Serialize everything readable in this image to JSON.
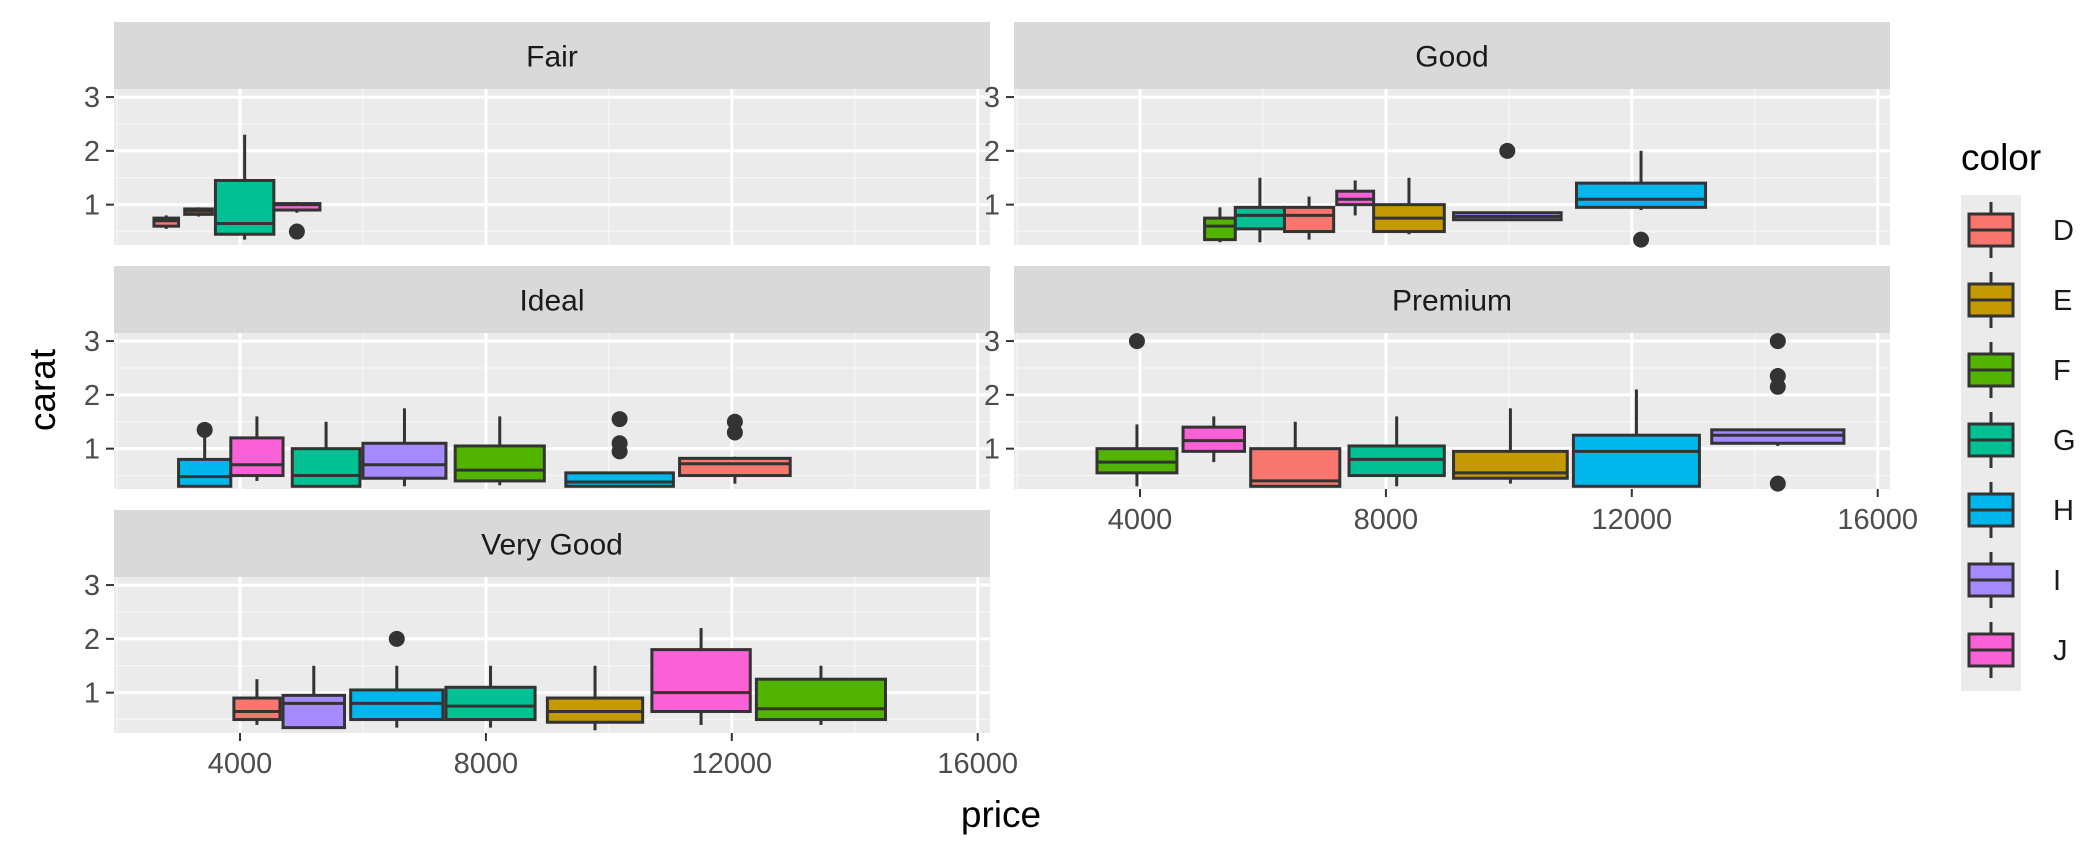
{
  "chart_data": {
    "type": "boxplot",
    "facet_by": "cut",
    "xlabel": "price",
    "ylabel": "carat",
    "x_ticks": [
      4000,
      8000,
      12000,
      16000
    ],
    "y_ticks": [
      1,
      2,
      3
    ],
    "xlim": [
      1950,
      16200
    ],
    "ylim": [
      0.25,
      3.15
    ],
    "grid": true,
    "legend": {
      "title": "color",
      "position": "right",
      "entries": [
        {
          "label": "D",
          "color": "#F8766D"
        },
        {
          "label": "E",
          "color": "#C49A00"
        },
        {
          "label": "F",
          "color": "#53B400"
        },
        {
          "label": "G",
          "color": "#00C094"
        },
        {
          "label": "H",
          "color": "#00B6EB"
        },
        {
          "label": "I",
          "color": "#A58AFF"
        },
        {
          "label": "J",
          "color": "#FB61D7"
        }
      ]
    },
    "panels": [
      {
        "title": "Fair",
        "x_axis": false,
        "boxes": [
          {
            "color": "D",
            "x_min": 2600,
            "x_max": 3000,
            "lower": 0.55,
            "q1": 0.6,
            "median": 0.7,
            "q3": 0.75,
            "upper": 0.8,
            "outliers": []
          },
          {
            "color": "E",
            "x_min": 3100,
            "x_max": 3550,
            "lower": 0.78,
            "q1": 0.82,
            "median": 0.88,
            "q3": 0.92,
            "upper": 0.95,
            "outliers": []
          },
          {
            "color": "G",
            "x_min": 3600,
            "x_max": 4550,
            "lower": 0.35,
            "q1": 0.45,
            "median": 0.65,
            "q3": 1.45,
            "upper": 2.3,
            "outliers": []
          },
          {
            "color": "J",
            "x_min": 4550,
            "x_max": 5300,
            "lower": 0.85,
            "q1": 0.9,
            "median": 1.0,
            "q3": 1.02,
            "upper": 1.05,
            "outliers": [
              0.5
            ]
          }
        ]
      },
      {
        "title": "Good",
        "x_axis": false,
        "boxes": [
          {
            "color": "F",
            "x_min": 5050,
            "x_max": 5550,
            "lower": 0.3,
            "q1": 0.35,
            "median": 0.6,
            "q3": 0.75,
            "upper": 0.95,
            "outliers": []
          },
          {
            "color": "G",
            "x_min": 5550,
            "x_max": 6350,
            "lower": 0.3,
            "q1": 0.55,
            "median": 0.8,
            "q3": 0.95,
            "upper": 1.5,
            "outliers": []
          },
          {
            "color": "D",
            "x_min": 6350,
            "x_max": 7150,
            "lower": 0.35,
            "q1": 0.5,
            "median": 0.8,
            "q3": 0.95,
            "upper": 1.15,
            "outliers": []
          },
          {
            "color": "J",
            "x_min": 7200,
            "x_max": 7800,
            "lower": 0.8,
            "q1": 1.0,
            "median": 1.1,
            "q3": 1.25,
            "upper": 1.45,
            "outliers": []
          },
          {
            "color": "E",
            "x_min": 7800,
            "x_max": 8950,
            "lower": 0.45,
            "q1": 0.5,
            "median": 0.75,
            "q3": 1.0,
            "upper": 1.5,
            "outliers": []
          },
          {
            "color": "I",
            "x_min": 9100,
            "x_max": 10850,
            "lower": 0.7,
            "q1": 0.72,
            "median": 0.78,
            "q3": 0.85,
            "upper": 0.85,
            "outliers": [
              2.0
            ]
          },
          {
            "color": "H",
            "x_min": 11100,
            "x_max": 13200,
            "lower": 0.9,
            "q1": 0.95,
            "median": 1.1,
            "q3": 1.4,
            "upper": 2.0,
            "outliers": [
              0.35
            ]
          }
        ]
      },
      {
        "title": "Ideal",
        "x_axis": false,
        "boxes": [
          {
            "color": "H",
            "x_min": 3000,
            "x_max": 3850,
            "lower": 0.28,
            "q1": 0.3,
            "median": 0.48,
            "q3": 0.8,
            "upper": 1.3,
            "outliers": [
              1.35
            ]
          },
          {
            "color": "J",
            "x_min": 3850,
            "x_max": 4700,
            "lower": 0.4,
            "q1": 0.5,
            "median": 0.7,
            "q3": 1.2,
            "upper": 1.6,
            "outliers": []
          },
          {
            "color": "G",
            "x_min": 4850,
            "x_max": 5950,
            "lower": 0.28,
            "q1": 0.3,
            "median": 0.5,
            "q3": 1.0,
            "upper": 1.5,
            "outliers": []
          },
          {
            "color": "I",
            "x_min": 6000,
            "x_max": 7350,
            "lower": 0.3,
            "q1": 0.45,
            "median": 0.7,
            "q3": 1.1,
            "upper": 1.75,
            "outliers": []
          },
          {
            "color": "F",
            "x_min": 7500,
            "x_max": 8950,
            "lower": 0.32,
            "q1": 0.4,
            "median": 0.6,
            "q3": 1.05,
            "upper": 1.6,
            "outliers": []
          },
          {
            "color": "H",
            "x_min": 9300,
            "x_max": 11050,
            "lower": 0.3,
            "q1": 0.3,
            "median": 0.38,
            "q3": 0.55,
            "upper": 0.55,
            "outliers": [
              1.55,
              1.1,
              0.95
            ]
          },
          {
            "color": "D",
            "x_min": 11150,
            "x_max": 12950,
            "lower": 0.35,
            "q1": 0.5,
            "median": 0.72,
            "q3": 0.82,
            "upper": 0.85,
            "outliers": [
              1.5,
              1.3
            ]
          }
        ]
      },
      {
        "title": "Premium",
        "x_axis": true,
        "boxes": [
          {
            "color": "F",
            "x_min": 3300,
            "x_max": 4600,
            "lower": 0.3,
            "q1": 0.55,
            "median": 0.75,
            "q3": 1.0,
            "upper": 1.45,
            "outliers": [
              3.0
            ]
          },
          {
            "color": "J",
            "x_min": 4700,
            "x_max": 5700,
            "lower": 0.75,
            "q1": 0.95,
            "median": 1.15,
            "q3": 1.4,
            "upper": 1.6,
            "outliers": []
          },
          {
            "color": "D",
            "x_min": 5800,
            "x_max": 7250,
            "lower": 0.3,
            "q1": 0.3,
            "median": 0.4,
            "q3": 1.0,
            "upper": 1.5,
            "outliers": []
          },
          {
            "color": "G",
            "x_min": 7400,
            "x_max": 8950,
            "lower": 0.3,
            "q1": 0.5,
            "median": 0.8,
            "q3": 1.05,
            "upper": 1.6,
            "outliers": []
          },
          {
            "color": "E",
            "x_min": 9100,
            "x_max": 10950,
            "lower": 0.35,
            "q1": 0.45,
            "median": 0.55,
            "q3": 0.95,
            "upper": 1.75,
            "outliers": []
          },
          {
            "color": "H",
            "x_min": 11050,
            "x_max": 13100,
            "lower": 0.3,
            "q1": 0.3,
            "median": 0.95,
            "q3": 1.25,
            "upper": 2.1,
            "outliers": []
          },
          {
            "color": "I",
            "x_min": 13300,
            "x_max": 15450,
            "lower": 1.05,
            "q1": 1.1,
            "median": 1.25,
            "q3": 1.35,
            "upper": 1.35,
            "outliers": [
              3.0,
              2.35,
              2.15,
              0.35
            ]
          }
        ]
      },
      {
        "title": "Very Good",
        "x_axis": true,
        "boxes": [
          {
            "color": "D",
            "x_min": 3900,
            "x_max": 4650,
            "lower": 0.4,
            "q1": 0.5,
            "median": 0.65,
            "q3": 0.9,
            "upper": 1.25,
            "outliers": []
          },
          {
            "color": "I",
            "x_min": 4700,
            "x_max": 5700,
            "lower": 0.35,
            "q1": 0.35,
            "median": 0.8,
            "q3": 0.95,
            "upper": 1.5,
            "outliers": []
          },
          {
            "color": "H",
            "x_min": 5800,
            "x_max": 7300,
            "lower": 0.35,
            "q1": 0.5,
            "median": 0.8,
            "q3": 1.05,
            "upper": 1.5,
            "outliers": [
              2.0
            ]
          },
          {
            "color": "G",
            "x_min": 7350,
            "x_max": 8800,
            "lower": 0.35,
            "q1": 0.5,
            "median": 0.75,
            "q3": 1.1,
            "upper": 1.5,
            "outliers": []
          },
          {
            "color": "E",
            "x_min": 9000,
            "x_max": 10550,
            "lower": 0.3,
            "q1": 0.45,
            "median": 0.65,
            "q3": 0.9,
            "upper": 1.5,
            "outliers": []
          },
          {
            "color": "J",
            "x_min": 10700,
            "x_max": 12300,
            "lower": 0.4,
            "q1": 0.65,
            "median": 1.0,
            "q3": 1.8,
            "upper": 2.2,
            "outliers": []
          },
          {
            "color": "F",
            "x_min": 12400,
            "x_max": 14500,
            "lower": 0.4,
            "q1": 0.5,
            "median": 0.7,
            "q3": 1.25,
            "upper": 1.5,
            "outliers": []
          }
        ]
      }
    ]
  }
}
